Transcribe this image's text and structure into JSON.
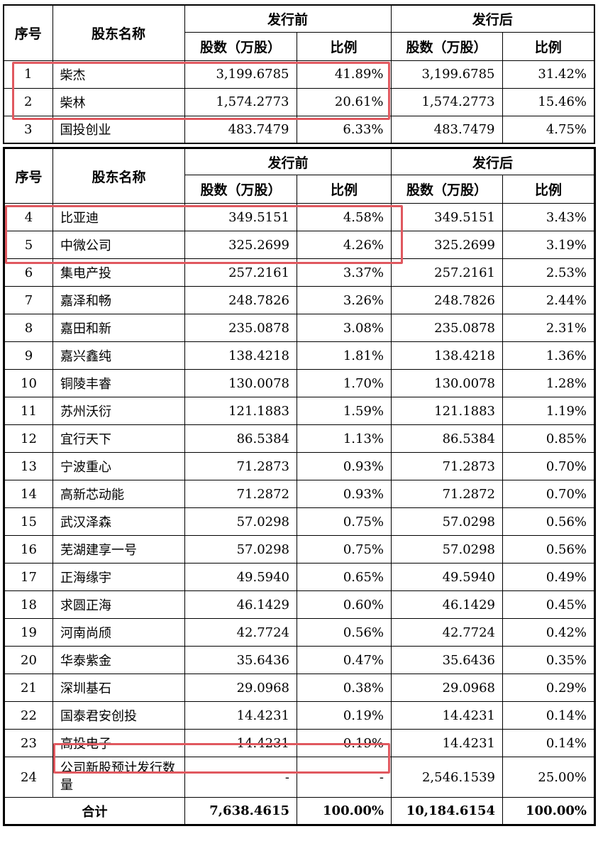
{
  "headers": {
    "seq": "序号",
    "name": "股东名称",
    "before": "发行前",
    "after": "发行后",
    "shares": "股数（万股）",
    "ratio": "比例"
  },
  "table1_rows": [
    {
      "seq": "1",
      "name": "柴杰",
      "before_shares": "3,199.6785",
      "before_ratio": "41.89%",
      "after_shares": "3,199.6785",
      "after_ratio": "31.42%"
    },
    {
      "seq": "2",
      "name": "柴林",
      "before_shares": "1,574.2773",
      "before_ratio": "20.61%",
      "after_shares": "1,574.2773",
      "after_ratio": "15.46%"
    },
    {
      "seq": "3",
      "name": "国投创业",
      "before_shares": "483.7479",
      "before_ratio": "6.33%",
      "after_shares": "483.7479",
      "after_ratio": "4.75%"
    }
  ],
  "table2_rows": [
    {
      "seq": "4",
      "name": "比亚迪",
      "before_shares": "349.5151",
      "before_ratio": "4.58%",
      "after_shares": "349.5151",
      "after_ratio": "3.43%"
    },
    {
      "seq": "5",
      "name": "中微公司",
      "before_shares": "325.2699",
      "before_ratio": "4.26%",
      "after_shares": "325.2699",
      "after_ratio": "3.19%"
    },
    {
      "seq": "6",
      "name": "集电产投",
      "before_shares": "257.2161",
      "before_ratio": "3.37%",
      "after_shares": "257.2161",
      "after_ratio": "2.53%"
    },
    {
      "seq": "7",
      "name": "嘉泽和畅",
      "before_shares": "248.7826",
      "before_ratio": "3.26%",
      "after_shares": "248.7826",
      "after_ratio": "2.44%"
    },
    {
      "seq": "8",
      "name": "嘉田和新",
      "before_shares": "235.0878",
      "before_ratio": "3.08%",
      "after_shares": "235.0878",
      "after_ratio": "2.31%"
    },
    {
      "seq": "9",
      "name": "嘉兴鑫纯",
      "before_shares": "138.4218",
      "before_ratio": "1.81%",
      "after_shares": "138.4218",
      "after_ratio": "1.36%"
    },
    {
      "seq": "10",
      "name": "铜陵丰睿",
      "before_shares": "130.0078",
      "before_ratio": "1.70%",
      "after_shares": "130.0078",
      "after_ratio": "1.28%"
    },
    {
      "seq": "11",
      "name": "苏州沃衍",
      "before_shares": "121.1883",
      "before_ratio": "1.59%",
      "after_shares": "121.1883",
      "after_ratio": "1.19%"
    },
    {
      "seq": "12",
      "name": "宜行天下",
      "before_shares": "86.5384",
      "before_ratio": "1.13%",
      "after_shares": "86.5384",
      "after_ratio": "0.85%"
    },
    {
      "seq": "13",
      "name": "宁波重心",
      "before_shares": "71.2873",
      "before_ratio": "0.93%",
      "after_shares": "71.2873",
      "after_ratio": "0.70%"
    },
    {
      "seq": "14",
      "name": "高新芯动能",
      "before_shares": "71.2872",
      "before_ratio": "0.93%",
      "after_shares": "71.2872",
      "after_ratio": "0.70%"
    },
    {
      "seq": "15",
      "name": "武汉泽森",
      "before_shares": "57.0298",
      "before_ratio": "0.75%",
      "after_shares": "57.0298",
      "after_ratio": "0.56%"
    },
    {
      "seq": "16",
      "name": "芜湖建享一号",
      "before_shares": "57.0298",
      "before_ratio": "0.75%",
      "after_shares": "57.0298",
      "after_ratio": "0.56%"
    },
    {
      "seq": "17",
      "name": "正海缘宇",
      "before_shares": "49.5940",
      "before_ratio": "0.65%",
      "after_shares": "49.5940",
      "after_ratio": "0.49%"
    },
    {
      "seq": "18",
      "name": "求圆正海",
      "before_shares": "46.1429",
      "before_ratio": "0.60%",
      "after_shares": "46.1429",
      "after_ratio": "0.45%"
    },
    {
      "seq": "19",
      "name": "河南尚颀",
      "before_shares": "42.7724",
      "before_ratio": "0.56%",
      "after_shares": "42.7724",
      "after_ratio": "0.42%"
    },
    {
      "seq": "20",
      "name": "华泰紫金",
      "before_shares": "35.6436",
      "before_ratio": "0.47%",
      "after_shares": "35.6436",
      "after_ratio": "0.35%"
    },
    {
      "seq": "21",
      "name": "深圳基石",
      "before_shares": "29.0968",
      "before_ratio": "0.38%",
      "after_shares": "29.0968",
      "after_ratio": "0.29%"
    },
    {
      "seq": "22",
      "name": "国泰君安创投",
      "before_shares": "14.4231",
      "before_ratio": "0.19%",
      "after_shares": "14.4231",
      "after_ratio": "0.14%"
    },
    {
      "seq": "23",
      "name": "高投电子",
      "before_shares": "14.4231",
      "before_ratio": "0.19%",
      "after_shares": "14.4231",
      "after_ratio": "0.14%"
    },
    {
      "seq": "24",
      "name": "公司新股预计发行数量",
      "before_shares": "-",
      "before_ratio": "-",
      "after_shares": "2,546.1539",
      "after_ratio": "25.00%"
    }
  ],
  "total": {
    "label": "合计",
    "before_shares": "7,638.4615",
    "before_ratio": "100.00%",
    "after_shares": "10,184.6154",
    "after_ratio": "100.00%"
  },
  "highlight_color": "#e0585f"
}
